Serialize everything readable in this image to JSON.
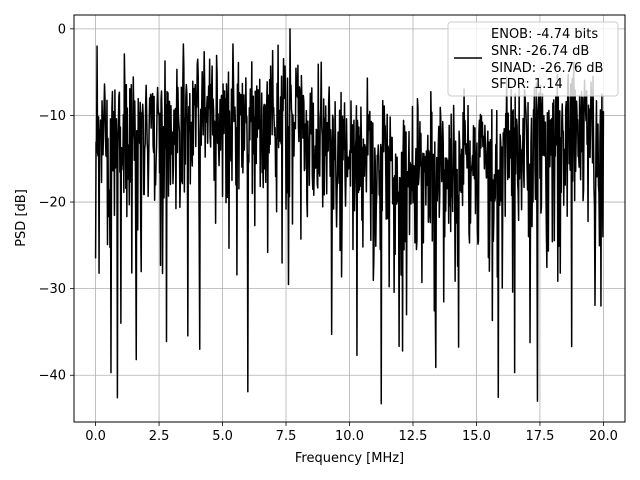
{
  "chart_data": {
    "type": "line",
    "xlabel": "Frequency [MHz]",
    "ylabel": "PSD [dB]",
    "xlim": [
      -0.85,
      20.85
    ],
    "ylim": [
      -45.4,
      1.6
    ],
    "xticks": [
      0.0,
      2.5,
      5.0,
      7.5,
      10.0,
      12.5,
      15.0,
      17.5,
      20.0
    ],
    "xtick_labels": [
      "0.0",
      "2.5",
      "5.0",
      "7.5",
      "10.0",
      "12.5",
      "15.0",
      "17.5",
      "20.0"
    ],
    "yticks": [
      0,
      -10,
      -20,
      -30,
      -40
    ],
    "ytick_labels": [
      "0",
      "−10",
      "−20",
      "−30",
      "−40"
    ],
    "grid": true,
    "legend": {
      "placement": "top-right",
      "entries": [
        "ENOB: -4.74 bits",
        "SNR: -26.74 dB",
        "SINAD: -26.76 dB",
        "SFDR: 1.14"
      ]
    },
    "series": [
      {
        "color": "#000000",
        "x_start": 0.0,
        "x_end": 20.0,
        "points": 1025,
        "envelope_note": "dense noise-like PSD trace; values range roughly -43 to 0 dB with most energy between -25 and -5 dB",
        "peaks": [
          {
            "x": 0.0,
            "y": -26.5
          },
          {
            "x": 0.05,
            "y": -2.0
          },
          {
            "x": 0.85,
            "y": -42.6
          },
          {
            "x": 0.6,
            "y": -39.7
          },
          {
            "x": 1.0,
            "y": -34.0
          },
          {
            "x": 1.6,
            "y": -38.2
          },
          {
            "x": 2.8,
            "y": -36.1
          },
          {
            "x": 4.1,
            "y": -37.0
          },
          {
            "x": 6.0,
            "y": -41.9
          },
          {
            "x": 7.65,
            "y": 0.0
          },
          {
            "x": 10.3,
            "y": -37.7
          },
          {
            "x": 11.25,
            "y": -43.3
          },
          {
            "x": 13.4,
            "y": -39.1
          },
          {
            "x": 16.5,
            "y": -39.7
          },
          {
            "x": 18.75,
            "y": -36.7
          },
          {
            "x": 19.9,
            "y": -32.0
          },
          {
            "x": 20.0,
            "y": -9.5
          }
        ]
      }
    ]
  },
  "colors": {
    "line": "#000000",
    "grid": "#b0b0b0",
    "axes": "#000000",
    "legend_border": "#cccccc",
    "background": "#ffffff"
  }
}
